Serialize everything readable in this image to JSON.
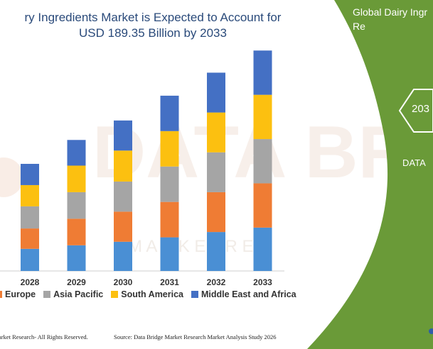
{
  "header": {
    "title": "ry Ingredients Market is Expected to Account for\nUSD 189.35 Billion by 2033"
  },
  "panel": {
    "title": "Global Dairy Ingr\nRe",
    "badge": "203",
    "caption": "DATA",
    "bg_color": "#6a9a38"
  },
  "watermark": {
    "text": "DATA BRIDGE",
    "subtext": "M A R K E T   R E S"
  },
  "chart_data": {
    "type": "bar",
    "stacked": true,
    "categories": [
      "2028",
      "2029",
      "2030",
      "2031",
      "2032",
      "2033"
    ],
    "ylim": [
      0,
      250
    ],
    "series": [
      {
        "name": "",
        "color": "#4a8fd4",
        "values": [
          25,
          29,
          33,
          38,
          44,
          49
        ]
      },
      {
        "name": "Europe",
        "color": "#ef7c34",
        "values": [
          23,
          30,
          34,
          40,
          45,
          50
        ]
      },
      {
        "name": "Asia Pacific",
        "color": "#a5a5a5",
        "values": [
          25,
          30,
          34,
          40,
          45,
          50
        ]
      },
      {
        "name": "South America",
        "color": "#fcc010",
        "values": [
          24,
          30,
          35,
          40,
          45,
          50
        ]
      },
      {
        "name": "Middle East and Africa",
        "color": "#4470c4",
        "values": [
          24,
          29,
          34,
          40,
          45,
          50
        ]
      }
    ]
  },
  "footer": {
    "left": "arket Research- All Rights Reserved.",
    "right": "Source: Data Bridge Market Research Market Analysis Study 2026"
  }
}
